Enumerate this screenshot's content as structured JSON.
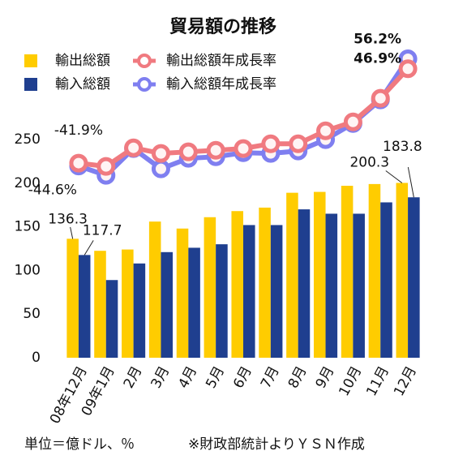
{
  "chart_data": {
    "type": "bar_line",
    "title": "貿易額の推移",
    "categories": [
      "08年12月",
      "09年1月",
      "2月",
      "3月",
      "4月",
      "5月",
      "6月",
      "7月",
      "8月",
      "9月",
      "10月",
      "11月",
      "12月"
    ],
    "series": [
      {
        "name": "輸出総額",
        "type": "bar",
        "color": "#ffcc00",
        "values": [
          136.3,
          122.5,
          124,
          156,
          148,
          161,
          168,
          172,
          189,
          190,
          197,
          199,
          200.3
        ],
        "value_labels": [
          "136.3",
          null,
          null,
          null,
          null,
          null,
          null,
          null,
          null,
          null,
          null,
          null,
          "200.3"
        ]
      },
      {
        "name": "輸入総額",
        "type": "bar",
        "color": "#1f3f8f",
        "values": [
          117.7,
          89,
          108,
          121,
          126,
          130,
          152,
          152,
          170,
          165,
          165,
          178,
          183.8
        ],
        "value_labels": [
          "117.7",
          null,
          null,
          null,
          null,
          null,
          null,
          null,
          null,
          null,
          null,
          null,
          "183.8"
        ]
      },
      {
        "name": "輸出総額年成長率",
        "type": "line",
        "axis": "y2",
        "color": "#f07a80",
        "values": [
          -41.9,
          -45,
          -27.5,
          -32.8,
          -31.3,
          -29.8,
          -28.2,
          -23.7,
          -23.7,
          -11.5,
          -3.1,
          19.1,
          46.9
        ],
        "value_labels": [
          "-41.9%",
          null,
          null,
          null,
          null,
          null,
          null,
          null,
          null,
          null,
          null,
          null,
          "46.9%"
        ]
      },
      {
        "name": "輸入総額年成長率",
        "type": "line",
        "axis": "y2",
        "color": "#7f7ff0",
        "values": [
          -44.6,
          -53.4,
          -28.2,
          -47.3,
          -37.4,
          -35.9,
          -32.1,
          -32.8,
          -30.5,
          -19.8,
          -4.6,
          17.6,
          56.2
        ],
        "value_labels": [
          "-44.6%",
          null,
          null,
          null,
          null,
          null,
          null,
          null,
          null,
          null,
          null,
          null,
          "56.2%"
        ]
      }
    ],
    "ylim": [
      0,
      250
    ],
    "yticks": [
      0,
      50,
      100,
      150,
      200,
      250
    ],
    "y2lim": [
      -225,
      65
    ],
    "grid": false,
    "unit_note": "単位＝億ドル、％",
    "source": "※財政部統計よりＹＳＮ作成"
  }
}
